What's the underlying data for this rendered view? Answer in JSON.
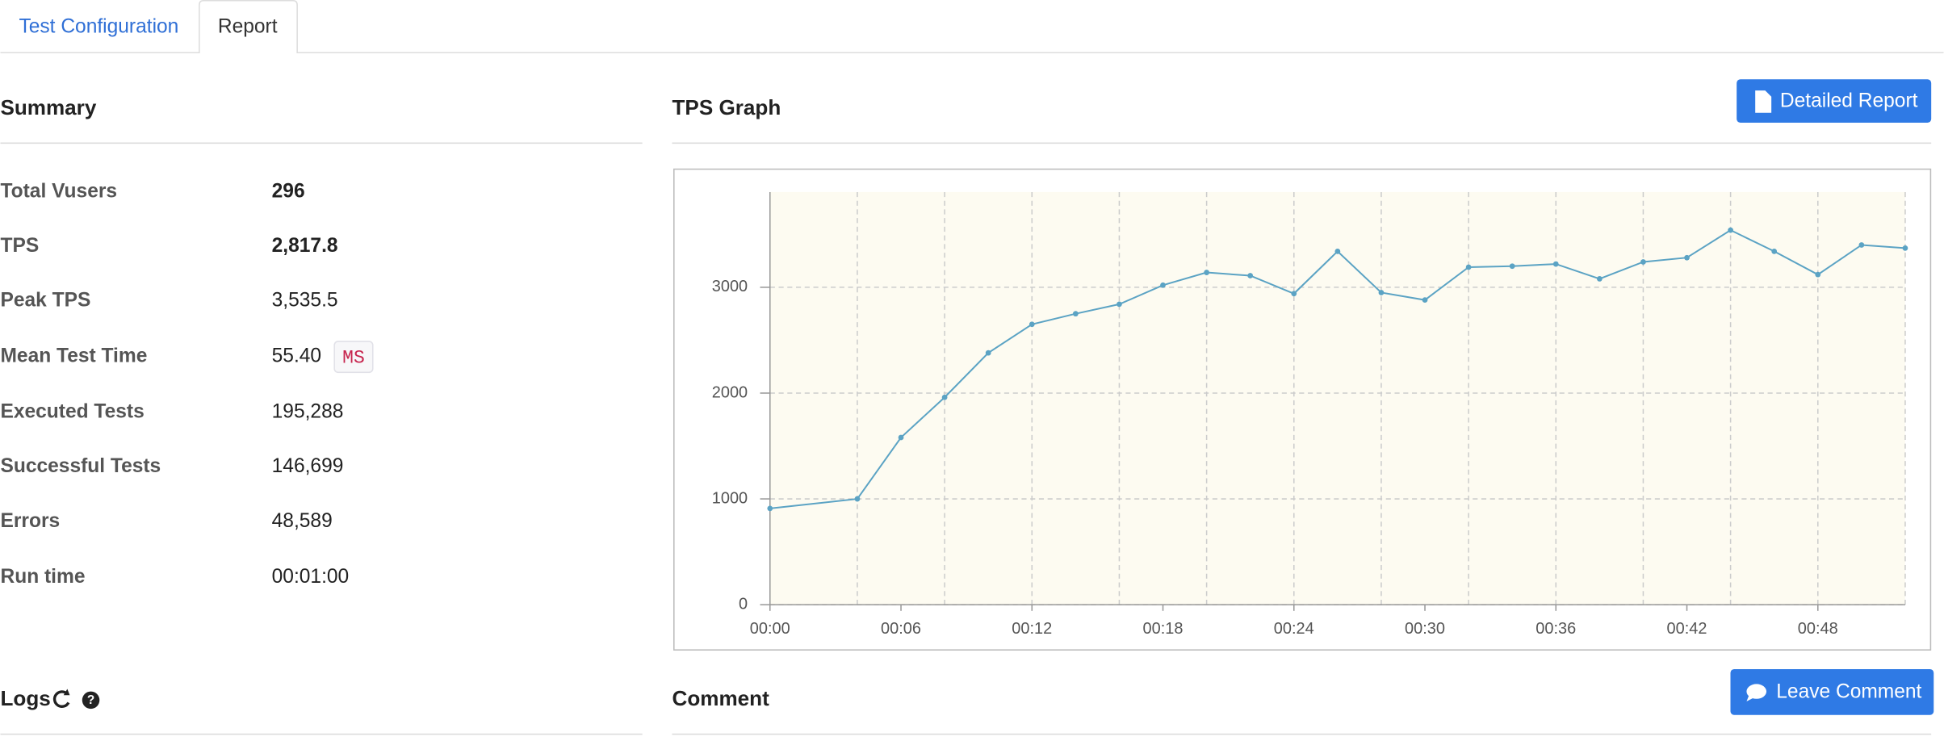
{
  "tabs": [
    "Test Configuration",
    "Report"
  ],
  "summary": {
    "title": "Summary",
    "rows": [
      {
        "label": "Total Vusers",
        "value": "296"
      },
      {
        "label": "TPS",
        "value": "2,817.8"
      },
      {
        "label": "Peak TPS",
        "value": "3,535.5"
      },
      {
        "label": "Mean Test Time",
        "value": "55.40",
        "unit": "MS"
      },
      {
        "label": "Executed Tests",
        "value": "195,288"
      },
      {
        "label": "Successful Tests",
        "value": "146,699"
      },
      {
        "label": "Errors",
        "value": "48,589"
      },
      {
        "label": "Run time",
        "value": "00:01:00"
      }
    ]
  },
  "buttons": {
    "detailed_report": "Detailed Report",
    "leave_comment": "Leave Comment"
  },
  "sections": {
    "logs": "Logs",
    "comment": "Comment"
  },
  "chart_data": {
    "type": "line",
    "title": "TPS Graph",
    "color": "#5ba3c4",
    "x": [
      0,
      4,
      6,
      8,
      10,
      12,
      14,
      16,
      18,
      20,
      22,
      24,
      26,
      28,
      30,
      32,
      34,
      36,
      38,
      40,
      42,
      44,
      46,
      48,
      50,
      52
    ],
    "values": [
      910,
      1000,
      1580,
      1960,
      2380,
      2650,
      2750,
      2840,
      3020,
      3140,
      3110,
      2940,
      3340,
      2950,
      2880,
      3190,
      3200,
      3220,
      3080,
      3240,
      3280,
      3540,
      3340,
      3120,
      3400,
      3370
    ],
    "xlim": [
      0,
      52
    ],
    "ylim": [
      0,
      3900
    ],
    "xticks": [
      {
        "value": 0,
        "label": "00:00"
      },
      {
        "value": 6,
        "label": "00:06"
      },
      {
        "value": 12,
        "label": "00:12"
      },
      {
        "value": 18,
        "label": "00:18"
      },
      {
        "value": 24,
        "label": "00:24"
      },
      {
        "value": 30,
        "label": "00:30"
      },
      {
        "value": 36,
        "label": "00:36"
      },
      {
        "value": 42,
        "label": "00:42"
      },
      {
        "value": 48,
        "label": "00:48"
      }
    ],
    "yticks": [
      0,
      1000,
      2000,
      3000
    ],
    "x_grid_lines": [
      4,
      8,
      12,
      16,
      20,
      24,
      28,
      32,
      36,
      40,
      44,
      48,
      52
    ],
    "grid": true
  }
}
